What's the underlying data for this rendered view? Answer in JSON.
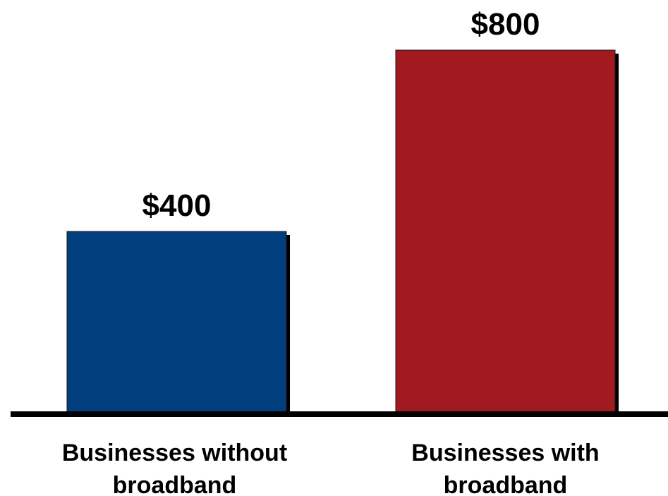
{
  "chart_data": {
    "type": "bar",
    "categories": [
      "Businesses without broadband",
      "Businesses with broadband"
    ],
    "category_lines": [
      [
        "Businesses without",
        "broadband"
      ],
      [
        "Businesses with",
        "broadband"
      ]
    ],
    "values": [
      400,
      800
    ],
    "value_labels": [
      "$400",
      "$800"
    ],
    "bar_colors": [
      "#003e7e",
      "#a01a1f"
    ],
    "title": "",
    "xlabel": "",
    "ylabel": "",
    "ylim": [
      0,
      800
    ],
    "grid": false,
    "legend": "none"
  }
}
